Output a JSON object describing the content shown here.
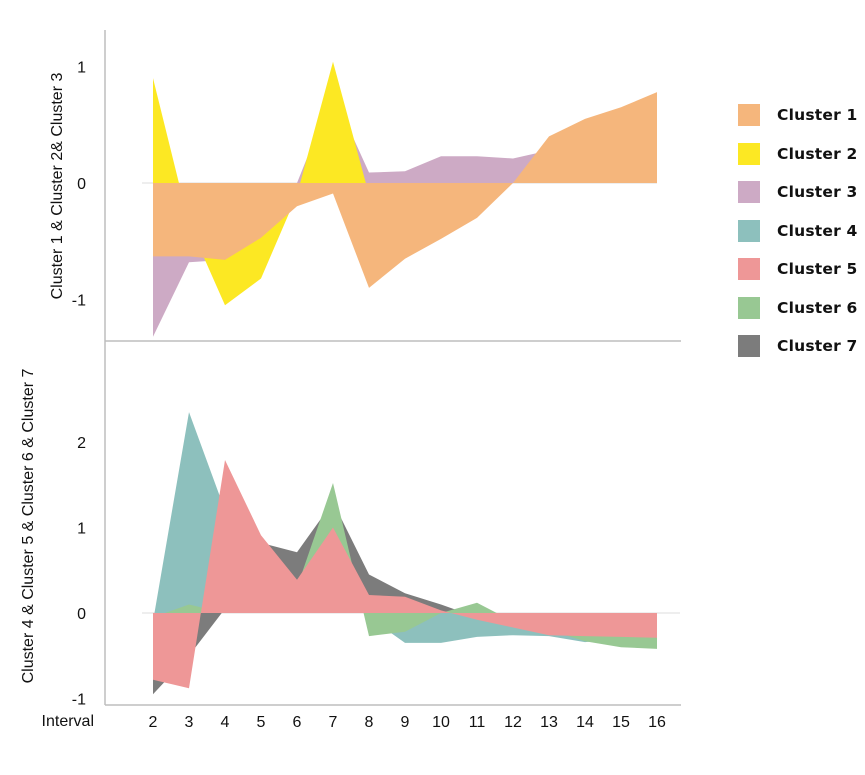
{
  "chart_data": [
    {
      "type": "area",
      "panel": "top",
      "ylabel": "Cluster 1 & Cluster 2& Cluster 3",
      "xlabel": "",
      "x": [
        2,
        3,
        4,
        5,
        6,
        7,
        8,
        9,
        10,
        11,
        12,
        13,
        14,
        15,
        16
      ],
      "ylim": [
        -1.35,
        1.3
      ],
      "yticks": [
        1,
        0,
        -1
      ],
      "grid": false,
      "series": [
        {
          "name": "Cluster 3",
          "color": "#CDAAC5",
          "values": [
            -1.32,
            -0.68,
            -0.66,
            -0.45,
            0.0,
            0.77,
            0.09,
            0.1,
            0.23,
            0.23,
            0.21,
            0.28,
            0.2,
            0.15,
            0.1
          ]
        },
        {
          "name": "Cluster 2",
          "color": "#FCE823",
          "values": [
            0.9,
            -0.35,
            -1.05,
            -0.82,
            -0.1,
            1.04,
            -0.1,
            -0.05,
            0.0,
            0.0,
            0.0,
            0.0,
            0.0,
            0.0,
            0.0
          ]
        },
        {
          "name": "Cluster 1",
          "color": "#F5B67C",
          "values": [
            -0.63,
            -0.63,
            -0.66,
            -0.47,
            -0.2,
            -0.09,
            -0.9,
            -0.65,
            -0.48,
            -0.3,
            0.0,
            0.4,
            0.55,
            0.65,
            0.78
          ]
        }
      ]
    },
    {
      "type": "area",
      "panel": "bottom",
      "ylabel": "Cluster 4 & Cluster 5 & Cluster 6 & Cluster 7",
      "xlabel": "Interval",
      "x": [
        2,
        3,
        4,
        5,
        6,
        7,
        8,
        9,
        10,
        11,
        12,
        13,
        14,
        15,
        16
      ],
      "xticks": [
        "2",
        "3",
        "4",
        "5",
        "6",
        "7",
        "8",
        "9",
        "10",
        "11",
        "12",
        "13",
        "14",
        "15",
        "16"
      ],
      "ylim": [
        -1.08,
        3.2
      ],
      "yticks": [
        2,
        1,
        0,
        -1
      ],
      "grid": false,
      "series": [
        {
          "name": "Cluster 4",
          "color": "#8DC0BD",
          "values": [
            -0.1,
            2.35,
            1.2,
            0.5,
            0.3,
            0.6,
            -0.05,
            -0.35,
            -0.35,
            -0.28,
            -0.26,
            -0.27,
            -0.34,
            -0.3,
            -0.28
          ]
        },
        {
          "name": "Cluster 7",
          "color": "#7C7C7C",
          "values": [
            -0.95,
            -0.5,
            0.05,
            0.82,
            0.71,
            1.3,
            0.45,
            0.23,
            0.1,
            -0.05,
            -0.1,
            -0.15,
            -0.2,
            -0.2,
            -0.2
          ]
        },
        {
          "name": "Cluster 6",
          "color": "#98C893",
          "values": [
            -0.05,
            0.1,
            0.0,
            0.5,
            0.3,
            1.52,
            -0.27,
            -0.22,
            0.0,
            0.12,
            -0.1,
            -0.2,
            -0.33,
            -0.4,
            -0.42
          ]
        },
        {
          "name": "Cluster 5",
          "color": "#EE9797",
          "values": [
            -0.78,
            -0.88,
            1.79,
            0.91,
            0.39,
            1.0,
            0.21,
            0.19,
            0.03,
            -0.08,
            -0.17,
            -0.26,
            -0.27,
            -0.28,
            -0.29
          ]
        }
      ]
    }
  ],
  "legend": {
    "placement": "right",
    "items": [
      {
        "label": "Cluster 1",
        "color": "#F5B67C"
      },
      {
        "label": "Cluster 2",
        "color": "#FCE823"
      },
      {
        "label": "Cluster 3",
        "color": "#CDAAC5"
      },
      {
        "label": "Cluster 4",
        "color": "#8DC0BD"
      },
      {
        "label": "Cluster 5",
        "color": "#EE9797"
      },
      {
        "label": "Cluster 6",
        "color": "#98C893"
      },
      {
        "label": "Cluster 7",
        "color": "#7C7C7C"
      }
    ]
  }
}
